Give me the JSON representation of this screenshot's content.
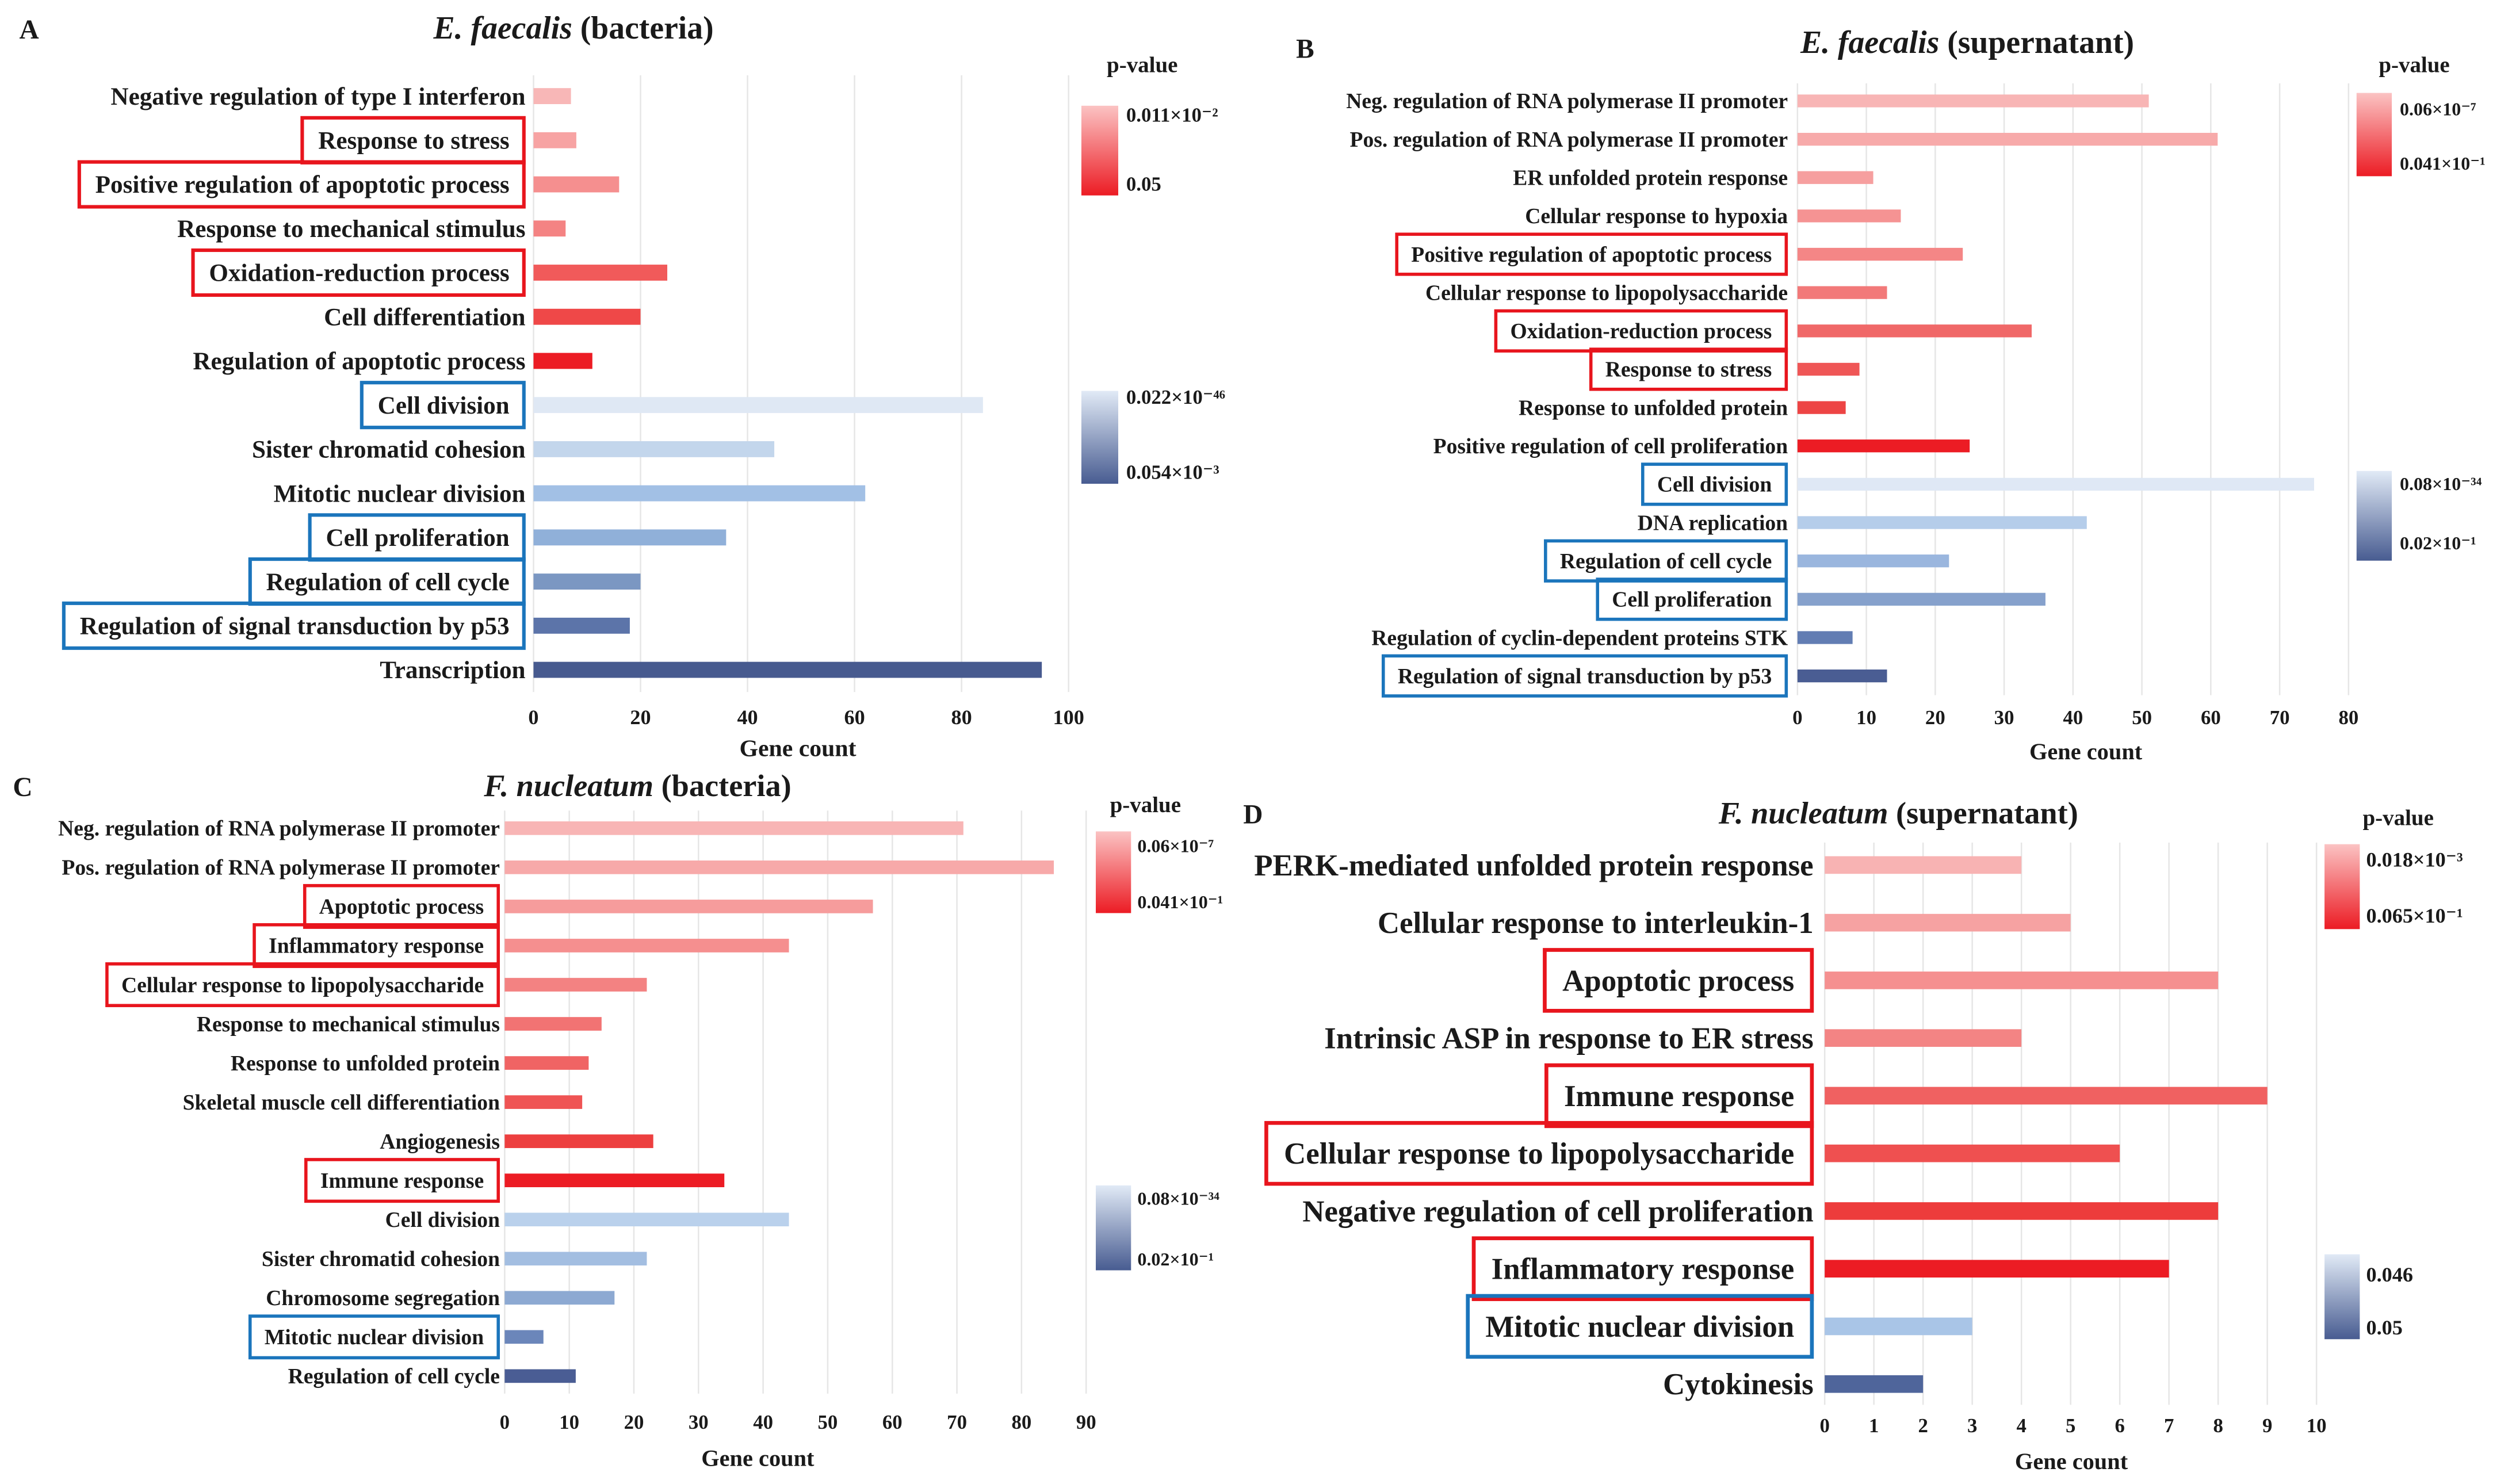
{
  "styles": {
    "highlight": {
      "red": "#e8151d",
      "blue": "#1b75bc"
    }
  },
  "chart_data": [
    {
      "type": "bar",
      "panel": "A",
      "title": {
        "organism": "E. faecalis",
        "sample": "(bacteria)"
      },
      "xlabel": "Gene count",
      "xlim": [
        0,
        100
      ],
      "xticks": [
        0,
        20,
        40,
        60,
        80,
        100
      ],
      "categories": [
        "Negative regulation of type I interferon",
        "Response to stress",
        "Positive regulation of apoptotic process",
        "Response to mechanical stimulus",
        "Oxidation-reduction process",
        "Cell differentiation",
        "Regulation of apoptotic process",
        "Cell division",
        "Sister chromatid cohesion",
        "Mitotic nuclear division",
        "Cell proliferation",
        "Regulation of cell cycle",
        "Regulation of signal transduction by p53",
        "Transcription"
      ],
      "values": [
        7,
        8,
        16,
        6,
        25,
        20,
        11,
        84,
        45,
        62,
        36,
        20,
        18,
        95
      ],
      "colors": [
        "#f8b7b7",
        "#f7a3a3",
        "#f58f8f",
        "#f48383",
        "#f15a5a",
        "#ef4848",
        "#ec1c24",
        "#dfe8f4",
        "#c3d6ec",
        "#a2c0e5",
        "#90b0d9",
        "#7b97c2",
        "#5c74a9",
        "#475a8f"
      ],
      "highlight": [
        null,
        "red",
        "red",
        null,
        "red",
        null,
        null,
        "blue",
        null,
        null,
        "blue",
        "blue",
        "blue",
        null
      ],
      "legend": {
        "title": "p-value",
        "red_top": "0.011×10⁻²",
        "red_bottom": "0.05",
        "blue_top": "0.022×10⁻⁴⁶",
        "blue_bottom": "0.054×10⁻³",
        "red_scale": [
          "#fbc3c3",
          "#ec1c24"
        ],
        "blue_scale": [
          "#e1eaf6",
          "#485c91"
        ]
      }
    },
    {
      "type": "bar",
      "panel": "B",
      "title": {
        "organism": "E. faecalis",
        "sample": "(supernatant)"
      },
      "xlabel": "Gene count",
      "xlim": [
        0,
        80
      ],
      "xticks": [
        0,
        10,
        20,
        30,
        40,
        50,
        60,
        70,
        80
      ],
      "categories": [
        "Neg. regulation of RNA polymerase II promoter",
        "Pos. regulation of RNA polymerase II promoter",
        "ER unfolded protein response",
        "Cellular response to hypoxia",
        "Positive regulation of apoptotic process",
        "Cellular response to lipopolysaccharide",
        "Oxidation-reduction process",
        "Response to stress",
        "Response to unfolded protein",
        "Positive regulation of cell proliferation",
        "Cell division",
        "DNA replication",
        "Regulation of cell cycle",
        "Cell proliferation",
        "Regulation of cyclin-dependent proteins STK",
        "Regulation of signal transduction by p53"
      ],
      "values": [
        51,
        61,
        11,
        15,
        24,
        13,
        34,
        9,
        7,
        25,
        75,
        42,
        22,
        36,
        8,
        13
      ],
      "colors": [
        "#f8b5b5",
        "#f7aaaa",
        "#f69f9f",
        "#f59393",
        "#f48686",
        "#f27979",
        "#f06868",
        "#ef5656",
        "#ed4444",
        "#ec1c24",
        "#dfe8f5",
        "#b5cdea",
        "#9ab6de",
        "#86a1cc",
        "#627db3",
        "#4a5d93"
      ],
      "highlight": [
        null,
        null,
        null,
        null,
        "red",
        null,
        "red",
        "red",
        null,
        null,
        "blue",
        null,
        "blue",
        "blue",
        null,
        "blue"
      ],
      "legend": {
        "title": "p-value",
        "red_top": "0.06×10⁻⁷",
        "red_bottom": "0.041×10⁻¹",
        "blue_top": "0.08×10⁻³⁴",
        "blue_bottom": "0.02×10⁻¹",
        "red_scale": [
          "#fbc3c3",
          "#ec1c24"
        ],
        "blue_scale": [
          "#e1eaf6",
          "#485c91"
        ]
      }
    },
    {
      "type": "bar",
      "panel": "C",
      "title": {
        "organism": "F. nucleatum",
        "sample": "(bacteria)"
      },
      "xlabel": "Gene count",
      "xlim": [
        0,
        90
      ],
      "xticks": [
        0,
        10,
        20,
        30,
        40,
        50,
        60,
        70,
        80,
        90
      ],
      "categories": [
        "Neg. regulation of RNA polymerase II promoter",
        "Pos. regulation of RNA polymerase II promoter",
        "Apoptotic process",
        "Inflammatory response",
        "Cellular response to lipopolysaccharide",
        "Response to mechanical stimulus",
        "Response to unfolded protein",
        "Skeletal muscle cell differentiation",
        "Angiogenesis",
        "Immune response",
        "Cell division",
        "Sister chromatid cohesion",
        "Chromosome segregation",
        "Mitotic nuclear division",
        "Regulation of cell cycle"
      ],
      "values": [
        71,
        85,
        57,
        44,
        22,
        15,
        13,
        12,
        23,
        34,
        44,
        22,
        17,
        6,
        11
      ],
      "colors": [
        "#f8b5b5",
        "#f7a9a9",
        "#f69c9c",
        "#f58f8f",
        "#f38282",
        "#f27373",
        "#f06464",
        "#ef5454",
        "#ed3f3f",
        "#ec1c24",
        "#bad1ec",
        "#a3bee1",
        "#8da9d2",
        "#6b86ba",
        "#4a5d94"
      ],
      "highlight": [
        null,
        null,
        "red",
        "red",
        "red",
        null,
        null,
        null,
        null,
        "red",
        null,
        null,
        null,
        "blue",
        null
      ],
      "legend": {
        "title": "p-value",
        "red_top": "0.06×10⁻⁷",
        "red_bottom": "0.041×10⁻¹",
        "blue_top": "0.08×10⁻³⁴",
        "blue_bottom": "0.02×10⁻¹",
        "red_scale": [
          "#fbc3c3",
          "#ec1c24"
        ],
        "blue_scale": [
          "#e1eaf6",
          "#485c91"
        ]
      }
    },
    {
      "type": "bar",
      "panel": "D",
      "title": {
        "organism": "F. nucleatum",
        "sample": "(supernatant)"
      },
      "xlabel": "Gene count",
      "xlim": [
        0,
        10
      ],
      "xticks": [
        0,
        1,
        2,
        3,
        4,
        5,
        6,
        7,
        8,
        9,
        10
      ],
      "categories": [
        "PERK-mediated unfolded protein response",
        "Cellular response to interleukin-1",
        "Apoptotic process",
        "Intrinsic ASP in response to ER stress",
        "Immune response",
        "Cellular response to lipopolysaccharide",
        "Negative regulation of cell proliferation",
        "Inflammatory response",
        "Mitotic nuclear division",
        "Cytokinesis"
      ],
      "values": [
        4,
        5,
        8,
        4,
        9,
        6,
        8,
        7,
        3,
        2
      ],
      "colors": [
        "#f8b3b3",
        "#f6a2a2",
        "#f59090",
        "#f38484",
        "#f06161",
        "#ef5050",
        "#ed3c3c",
        "#ec1c24",
        "#a9c5e7",
        "#4f659b"
      ],
      "highlight": [
        null,
        null,
        "red",
        null,
        "red",
        "red",
        null,
        "red",
        "blue",
        null
      ],
      "legend": {
        "title": "p-value",
        "red_top": "0.018×10⁻³",
        "red_bottom": "0.065×10⁻¹",
        "blue_top": "0.046",
        "blue_bottom": "0.05",
        "red_scale": [
          "#fbc3c3",
          "#ec1c24"
        ],
        "blue_scale": [
          "#e1eaf6",
          "#485c91"
        ]
      }
    }
  ]
}
